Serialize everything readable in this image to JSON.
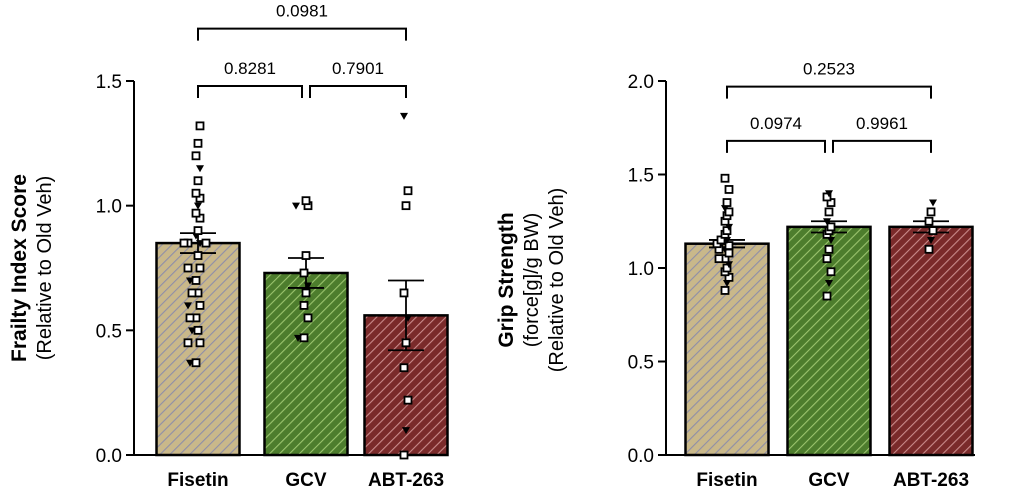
{
  "chart_data": [
    {
      "type": "bar",
      "ylabel_lines": [
        "Frailty Index Score",
        "(Relative to Old Veh)"
      ],
      "ylim": [
        0,
        1.5
      ],
      "yticks": [
        "0.0",
        "0.5",
        "1.0",
        "1.5"
      ],
      "ytick_values": [
        0,
        0.5,
        1.0,
        1.5
      ],
      "categories": [
        "Fisetin",
        "GCV",
        "ABT-263"
      ],
      "values": [
        0.85,
        0.73,
        0.56
      ],
      "sem": [
        0.04,
        0.06,
        0.14
      ],
      "colors": [
        "#c9b88a",
        "#4d7d2d",
        "#7a2a2a"
      ],
      "points": [
        [
          0.37,
          0.37,
          0.45,
          0.45,
          0.5,
          0.5,
          0.55,
          0.55,
          0.6,
          0.6,
          0.65,
          0.65,
          0.7,
          0.7,
          0.75,
          0.75,
          0.8,
          0.85,
          0.85,
          0.85,
          0.85,
          0.88,
          0.9,
          0.95,
          0.97,
          1.0,
          1.03,
          1.05,
          1.1,
          1.15,
          1.2,
          1.25,
          1.32
        ],
        [
          0.47,
          0.47,
          0.55,
          0.6,
          0.65,
          0.68,
          0.73,
          0.8,
          1.0,
          1.0,
          1.02
        ],
        [
          0.0,
          0.1,
          0.22,
          0.35,
          0.45,
          0.55,
          0.65,
          1.0,
          1.06,
          1.36
        ]
      ],
      "comparisons": [
        {
          "label": "0.8281",
          "from": 0,
          "to": 1,
          "y": 1.48
        },
        {
          "label": "0.7901",
          "from": 1,
          "to": 2,
          "y": 1.48
        },
        {
          "label": "0.0981",
          "from": 0,
          "to": 2,
          "y": 1.71
        }
      ]
    },
    {
      "type": "bar",
      "ylabel_lines": [
        "Grip Strength",
        "(force[g]/g BW)",
        "(Relative to Old Veh)"
      ],
      "ylim": [
        0,
        2.0
      ],
      "yticks": [
        "0.0",
        "0.5",
        "1.0",
        "1.5",
        "2.0"
      ],
      "ytick_values": [
        0,
        0.5,
        1.0,
        1.5,
        2.0
      ],
      "categories": [
        "Fisetin",
        "GCV",
        "ABT-263"
      ],
      "values": [
        1.13,
        1.22,
        1.22
      ],
      "sem": [
        0.02,
        0.03,
        0.03
      ],
      "colors": [
        "#c9b88a",
        "#4d7d2d",
        "#7a2a2a"
      ],
      "points": [
        [
          0.88,
          0.92,
          0.95,
          0.98,
          1.0,
          1.02,
          1.05,
          1.05,
          1.08,
          1.1,
          1.1,
          1.12,
          1.13,
          1.15,
          1.15,
          1.18,
          1.2,
          1.22,
          1.25,
          1.28,
          1.3,
          1.32,
          1.35,
          1.42,
          1.48
        ],
        [
          0.85,
          0.92,
          0.98,
          1.05,
          1.1,
          1.15,
          1.18,
          1.2,
          1.22,
          1.25,
          1.3,
          1.35,
          1.38,
          1.4
        ],
        [
          1.1,
          1.15,
          1.2,
          1.25,
          1.3,
          1.35
        ]
      ],
      "comparisons": [
        {
          "label": "0.0974",
          "from": 0,
          "to": 1,
          "y": 1.68
        },
        {
          "label": "0.9961",
          "from": 1,
          "to": 2,
          "y": 1.68
        },
        {
          "label": "0.2523",
          "from": 0,
          "to": 2,
          "y": 1.97
        }
      ]
    }
  ]
}
